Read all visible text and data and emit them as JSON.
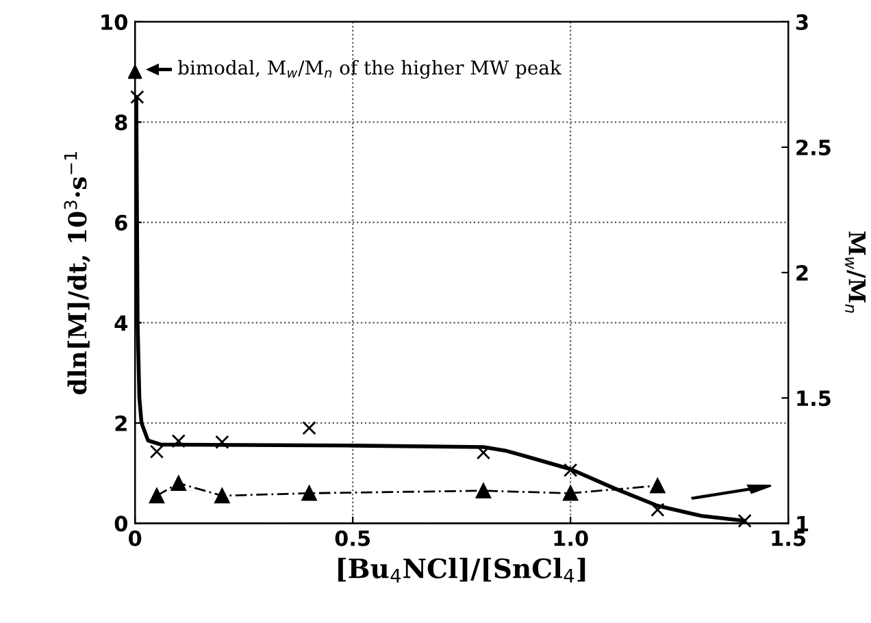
{
  "chart_data": {
    "type": "scatter",
    "xlabel": "[Bu$_{4}$NCl]/[SnCl$_{4}$]",
    "ylabel": "dln[M]/dt, 10$^{3}$·s$^{−1}$",
    "y2label": "M$_{w}$/M$_{n}$",
    "xlim": [
      0,
      1.5
    ],
    "xticks": [
      0,
      {
        "value": 0.5,
        "label": "0.5"
      },
      {
        "value": 1.0,
        "label": "1.0"
      },
      {
        "value": 1.5,
        "label": "1.5"
      }
    ],
    "ylim": [
      0,
      10
    ],
    "yticks": [
      0,
      2,
      4,
      6,
      8,
      10
    ],
    "y2lim": [
      1,
      3
    ],
    "y2ticks": [
      1,
      1.5,
      2,
      2.5,
      3
    ],
    "grid": true,
    "legend": false,
    "annotations": [
      "bimodal, M$_{w}$/M$_{n}$ of the higher MW peak"
    ],
    "series": [
      {
        "marker": "cross",
        "color": "#000000",
        "x": [
          0.005,
          0.05,
          0.1,
          0.2,
          0.4,
          0.8,
          1.0,
          1.2,
          1.4
        ],
        "values": [
          8.5,
          1.43,
          1.64,
          1.62,
          1.9,
          1.41,
          1.06,
          0.27,
          0.05
        ]
      },
      {
        "type": "line",
        "marker": "none",
        "line_style": "solid",
        "color": "#000000",
        "x": [
          0.003,
          0.006,
          0.01,
          0.015,
          0.03,
          0.06,
          0.5,
          0.8,
          0.85,
          0.9,
          1.0,
          1.1,
          1.2,
          1.3,
          1.4
        ],
        "values": [
          8.5,
          4,
          2.5,
          2.0,
          1.65,
          1.57,
          1.55,
          1.52,
          1.45,
          1.33,
          1.08,
          0.7,
          0.35,
          0.15,
          0.05
        ]
      },
      {
        "type": "line",
        "marker": "triangle",
        "line_style": "dashed",
        "axis": "y2",
        "color": "#000000",
        "x": [
          0.05,
          0.1,
          0.2,
          0.4,
          0.8,
          1.0,
          1.2
        ],
        "values": [
          1.11,
          1.16,
          1.11,
          1.12,
          1.13,
          1.12,
          1.15
        ]
      },
      {
        "marker": "triangle",
        "axis": "y2",
        "color": "#000000",
        "x": [
          0
        ],
        "values": [
          2.8
        ]
      }
    ]
  }
}
